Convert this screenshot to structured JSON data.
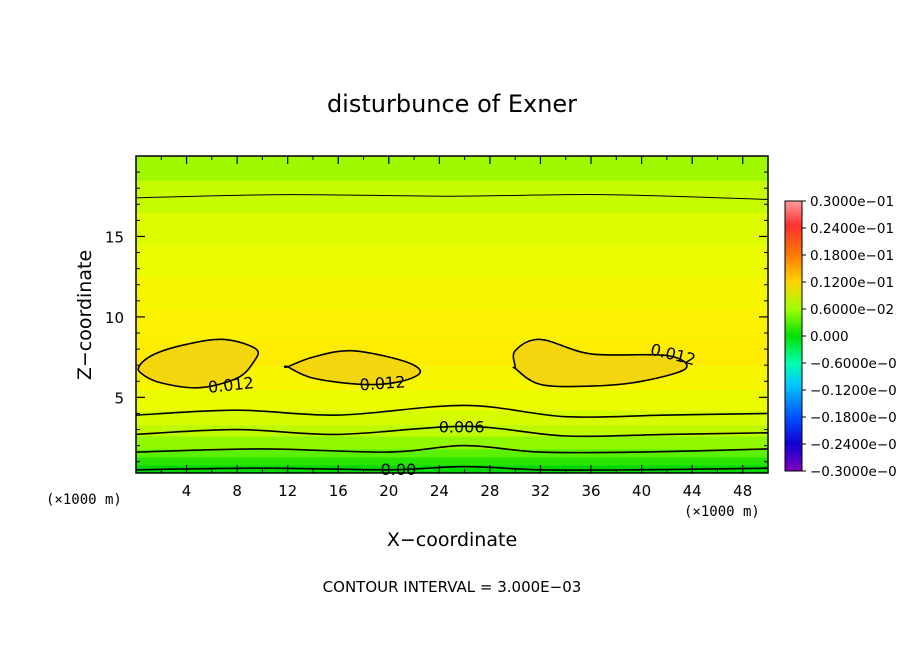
{
  "chart_data": {
    "type": "heatmap",
    "title": "disturbunce of Exner",
    "xlabel": "X−coordinate",
    "ylabel": "Z−coordinate",
    "x_unit": "(×1000 m)",
    "z_unit": "(×1000 m)",
    "xlim": [
      0,
      50
    ],
    "ylim": [
      0.3,
      20
    ],
    "x_ticks": [
      4,
      8,
      12,
      16,
      20,
      24,
      28,
      32,
      36,
      40,
      44,
      48
    ],
    "y_ticks": [
      5,
      10,
      15
    ],
    "footer": "CONTOUR INTERVAL = 3.000E−03",
    "colorbar": {
      "labels": [
        "0.3000e−01",
        "0.2400e−01",
        "0.1800e−01",
        "0.1200e−01",
        "0.6000e−02",
        "0.000",
        "−0.6000e−0",
        "−0.1200e−0",
        "−0.1800e−0",
        "−0.2400e−0",
        "−0.3000e−0"
      ],
      "values": [
        0.03,
        0.024,
        0.018,
        0.012,
        0.006,
        0.0,
        -0.006,
        -0.012,
        -0.018,
        -0.024,
        -0.03
      ]
    },
    "z_levels": [
      0.3,
      0.8,
      1.3,
      1.8,
      2.6,
      3.3,
      4.2,
      5.5,
      7.0,
      8.5,
      10.5,
      12.5,
      14.5,
      16.5,
      18.5,
      20
    ],
    "layer_values": [
      -0.0005,
      0.0015,
      0.0035,
      0.005,
      0.0065,
      0.008,
      0.0095,
      0.0105,
      0.0115,
      0.011,
      0.0105,
      0.0095,
      0.0085,
      0.007,
      0.0055
    ],
    "contours": [
      {
        "label": "0.00",
        "level": 0.0,
        "x": [
          0,
          10,
          20,
          26,
          32,
          40,
          50
        ],
        "z": [
          0.5,
          0.6,
          0.5,
          0.7,
          0.5,
          0.5,
          0.6
        ]
      },
      {
        "label": "",
        "level": 0.003,
        "x": [
          0,
          10,
          20,
          26,
          32,
          40,
          50
        ],
        "z": [
          1.6,
          1.8,
          1.6,
          2.0,
          1.6,
          1.6,
          1.8
        ]
      },
      {
        "label": "0.006",
        "level": 0.006,
        "x": [
          0,
          8,
          16,
          26,
          34,
          42,
          50
        ],
        "z": [
          2.7,
          3.0,
          2.7,
          3.2,
          2.6,
          2.7,
          2.8
        ]
      },
      {
        "label": "",
        "level": 0.009,
        "x": [
          0,
          8,
          16,
          26,
          34,
          42,
          50
        ],
        "z": [
          3.9,
          4.2,
          3.9,
          4.5,
          3.8,
          3.9,
          4.0
        ]
      },
      {
        "label": "",
        "level": 0.006,
        "x": [
          0,
          12,
          25,
          37,
          50
        ],
        "z": [
          17.4,
          17.6,
          17.5,
          17.6,
          17.3
        ]
      }
    ],
    "closed_contours": [
      {
        "label": "0.012",
        "level": 0.012,
        "label_pos": [
          7.5,
          5.8
        ],
        "x": [
          0.4,
          2,
          5,
          8,
          9.3,
          9.5,
          7,
          4,
          1.5,
          0.3
        ],
        "z": [
          6.5,
          5.9,
          5.6,
          6.2,
          7.2,
          8.0,
          8.6,
          8.3,
          7.7,
          7.0
        ]
      },
      {
        "label": "0.012",
        "level": 0.012,
        "label_pos": [
          19.5,
          5.9
        ],
        "x": [
          12,
          14,
          18,
          21,
          22.5,
          21,
          17,
          14,
          12
        ],
        "z": [
          6.9,
          6.2,
          5.8,
          6.0,
          6.6,
          7.3,
          7.9,
          7.5,
          6.9
        ]
      },
      {
        "label": "0.012",
        "level": 0.012,
        "label_pos": [
          42.5,
          7.7
        ],
        "x": [
          30,
          32,
          36,
          40,
          43.5,
          42,
          36,
          32,
          30,
          30
        ],
        "z": [
          6.8,
          5.8,
          5.7,
          6.0,
          6.8,
          7.6,
          7.7,
          8.6,
          7.9,
          6.9
        ]
      }
    ],
    "closed_contour_fill": "#f4d60e",
    "grid": false
  }
}
